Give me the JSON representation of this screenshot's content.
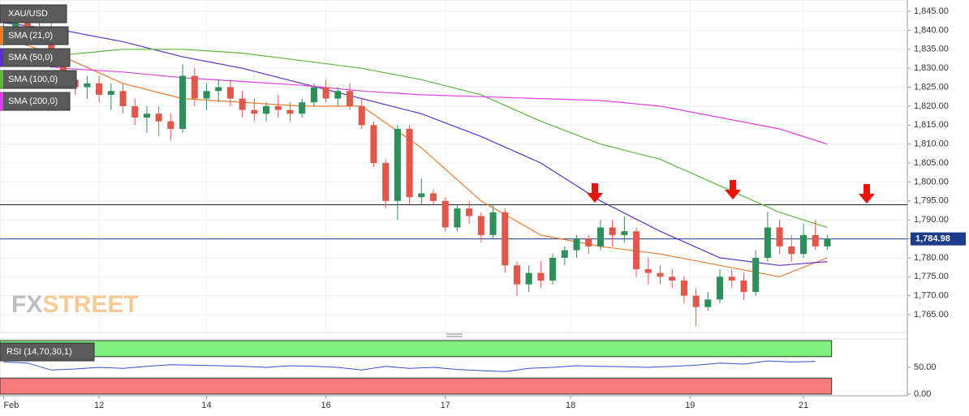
{
  "chart_data": [
    {
      "type": "candlestick",
      "name": "XAU/USD",
      "watermark": [
        "FX",
        "STREET"
      ],
      "grid": true,
      "up_color": "#2f8f5b",
      "down_color": "#e0584c",
      "x": [
        0,
        1,
        2,
        3,
        4,
        5,
        6,
        7,
        8,
        9,
        10,
        11,
        12,
        13,
        14,
        15,
        16,
        17,
        18,
        19,
        20,
        21,
        22,
        23,
        24,
        25,
        26,
        27,
        28,
        29,
        30,
        31,
        32,
        33,
        34,
        35,
        36,
        37,
        38,
        39,
        40,
        41,
        42,
        43,
        44,
        45,
        46,
        47,
        48,
        49,
        50,
        51,
        52,
        53,
        54,
        55,
        56,
        57,
        58,
        59,
        60,
        61,
        62,
        63,
        64,
        65,
        66,
        67,
        68,
        69
      ],
      "open": [
        1838,
        1840,
        1842,
        1841,
        1839,
        1831,
        1827,
        1825,
        1826,
        1823,
        1824,
        1820,
        1817,
        1818,
        1816,
        1814,
        1828,
        1822,
        1824,
        1825,
        1822,
        1819,
        1818,
        1820,
        1819,
        1818,
        1821,
        1825,
        1822,
        1824,
        1820,
        1815,
        1805,
        1795,
        1814,
        1796,
        1797,
        1795,
        1788,
        1793,
        1791,
        1786,
        1792,
        1778,
        1773,
        1776,
        1774,
        1780,
        1782,
        1785,
        1783,
        1788,
        1786,
        1787,
        1777,
        1776,
        1775,
        1774,
        1770,
        1767,
        1769,
        1775,
        1774,
        1771,
        1780,
        1788,
        1783,
        1781,
        1786,
        1783
      ],
      "high": [
        1842,
        1843,
        1845,
        1844,
        1842,
        1833,
        1829,
        1828,
        1828,
        1826,
        1826,
        1822,
        1820,
        1820,
        1818,
        1831,
        1830,
        1826,
        1827,
        1827,
        1824,
        1822,
        1821,
        1823,
        1821,
        1822,
        1826,
        1827,
        1825,
        1826,
        1822,
        1816,
        1806,
        1815,
        1815,
        1801,
        1798,
        1796,
        1794,
        1795,
        1792,
        1794,
        1793,
        1779,
        1778,
        1779,
        1781,
        1783,
        1786,
        1786,
        1790,
        1790,
        1791,
        1788,
        1780,
        1778,
        1777,
        1775,
        1772,
        1771,
        1777,
        1777,
        1776,
        1782,
        1792,
        1790,
        1786,
        1789,
        1790,
        1786
      ],
      "low": [
        1836,
        1838,
        1840,
        1838,
        1830,
        1825,
        1823,
        1822,
        1821,
        1819,
        1818,
        1815,
        1813,
        1812,
        1811,
        1813,
        1820,
        1819,
        1821,
        1820,
        1817,
        1816,
        1816,
        1817,
        1816,
        1817,
        1820,
        1821,
        1820,
        1819,
        1814,
        1804,
        1793,
        1790,
        1794,
        1794,
        1794,
        1787,
        1787,
        1789,
        1784,
        1785,
        1776,
        1770,
        1771,
        1772,
        1773,
        1778,
        1780,
        1781,
        1782,
        1783,
        1784,
        1775,
        1773,
        1773,
        1772,
        1768,
        1762,
        1766,
        1768,
        1772,
        1769,
        1770,
        1779,
        1781,
        1779,
        1780,
        1782,
        1782
      ],
      "close": [
        1840,
        1842,
        1841,
        1839,
        1831,
        1827,
        1825,
        1826,
        1823,
        1824,
        1820,
        1817,
        1818,
        1816,
        1814,
        1828,
        1822,
        1824,
        1825,
        1822,
        1819,
        1818,
        1820,
        1819,
        1818,
        1821,
        1825,
        1822,
        1824,
        1820,
        1815,
        1805,
        1795,
        1814,
        1796,
        1797,
        1795,
        1788,
        1793,
        1791,
        1786,
        1792,
        1778,
        1773,
        1776,
        1774,
        1780,
        1782,
        1785,
        1783,
        1788,
        1786,
        1787,
        1777,
        1776,
        1775,
        1774,
        1770,
        1767,
        1769,
        1775,
        1774,
        1771,
        1780,
        1788,
        1783,
        1781,
        1786,
        1783,
        1784.98
      ],
      "overlays": [
        {
          "name": "SMA (21,0)",
          "color": "#ef7a30",
          "x": [
            0,
            5,
            10,
            15,
            20,
            25,
            30,
            35,
            40,
            45,
            50,
            55,
            60,
            65,
            69
          ],
          "values": [
            1838,
            1833,
            1826,
            1822,
            1821,
            1820,
            1820,
            1809,
            1795,
            1786,
            1783,
            1781,
            1778,
            1775,
            1780
          ]
        },
        {
          "name": "SMA (50,0)",
          "color": "#5c2fd0",
          "x": [
            0,
            5,
            10,
            15,
            20,
            25,
            30,
            35,
            40,
            45,
            50,
            55,
            60,
            65,
            69
          ],
          "values": [
            1842,
            1840,
            1837,
            1833,
            1830,
            1826,
            1822,
            1818,
            1812,
            1805,
            1795,
            1787,
            1780,
            1778,
            1779
          ]
        },
        {
          "name": "SMA (100,0)",
          "color": "#5bb83a",
          "x": [
            0,
            5,
            10,
            15,
            20,
            25,
            30,
            35,
            40,
            45,
            50,
            55,
            60,
            65,
            69
          ],
          "values": [
            1832,
            1833.5,
            1835,
            1835,
            1834,
            1832,
            1830,
            1827,
            1823,
            1816,
            1810,
            1806,
            1799,
            1792,
            1788
          ]
        },
        {
          "name": "SMA (200,0)",
          "color": "#e040e0",
          "x": [
            0,
            5,
            10,
            15,
            20,
            25,
            30,
            35,
            40,
            45,
            50,
            55,
            60,
            65,
            69
          ],
          "values": [
            1832,
            1830,
            1829,
            1827.5,
            1826.5,
            1825.5,
            1824,
            1823,
            1822.5,
            1822,
            1821.5,
            1820,
            1817,
            1814,
            1810
          ]
        }
      ],
      "lines": [
        {
          "value": 1794,
          "color": "#222222"
        }
      ],
      "last_price": {
        "value": 1784.98,
        "label": "1,784.98",
        "color": "#1e3a8a"
      },
      "xlim": [
        -0.3,
        75.7
      ],
      "ylim": [
        1760.3,
        1848.0
      ],
      "xticks": [
        {
          "value": 0,
          "label": "Feb"
        },
        {
          "value": 8,
          "label": "12"
        },
        {
          "value": 17,
          "label": "14"
        },
        {
          "value": 27,
          "label": "16"
        },
        {
          "value": 37,
          "label": "17"
        },
        {
          "value": 47.5,
          "label": "18"
        },
        {
          "value": 57.5,
          "label": "19"
        },
        {
          "value": 67,
          "label": "21"
        }
      ],
      "yticks": [
        {
          "value": 1845,
          "label": "1,845.00"
        },
        {
          "value": 1840,
          "label": "1,840.00"
        },
        {
          "value": 1835,
          "label": "1,835.00"
        },
        {
          "value": 1830,
          "label": "1,830.00"
        },
        {
          "value": 1825,
          "label": "1,825.00"
        },
        {
          "value": 1820,
          "label": "1,820.00"
        },
        {
          "value": 1815,
          "label": "1,815.00"
        },
        {
          "value": 1810,
          "label": "1,810.00"
        },
        {
          "value": 1805,
          "label": "1,805.00"
        },
        {
          "value": 1800,
          "label": "1,800.00"
        },
        {
          "value": 1795,
          "label": "1,795.00"
        },
        {
          "value": 1790,
          "label": "1,790.00"
        },
        {
          "value": 1785,
          "label": "1,785.00"
        },
        {
          "value": 1780,
          "label": "1,780.00"
        },
        {
          "value": 1775,
          "label": "1,775.00"
        },
        {
          "value": 1770,
          "label": "1,770.00"
        },
        {
          "value": 1765,
          "label": "1,765.00"
        }
      ]
    },
    {
      "type": "line",
      "name": "RSI (14,70,30,1)",
      "color": "#3050d0",
      "upper": 70,
      "lower": 30,
      "upper_color": "#7ef07e",
      "lower_color": "#f77b7b",
      "x": [
        0,
        2,
        4,
        6,
        8,
        10,
        12,
        14,
        16,
        18,
        20,
        22,
        24,
        26,
        28,
        30,
        32,
        34,
        36,
        38,
        40,
        42,
        44,
        46,
        48,
        50,
        52,
        54,
        56,
        58,
        60,
        62,
        64,
        66,
        68
      ],
      "values": [
        60,
        58,
        45,
        47,
        50,
        48,
        52,
        55,
        54,
        53,
        52,
        50,
        53,
        52,
        50,
        45,
        52,
        48,
        50,
        46,
        44,
        42,
        48,
        50,
        53,
        52,
        51,
        50,
        52,
        54,
        58,
        56,
        62,
        60,
        61
      ],
      "ylim": [
        0,
        100
      ],
      "yticks": [
        {
          "value": 50,
          "label": "50.00"
        },
        {
          "value": 0,
          "label": "0.00"
        }
      ]
    }
  ]
}
